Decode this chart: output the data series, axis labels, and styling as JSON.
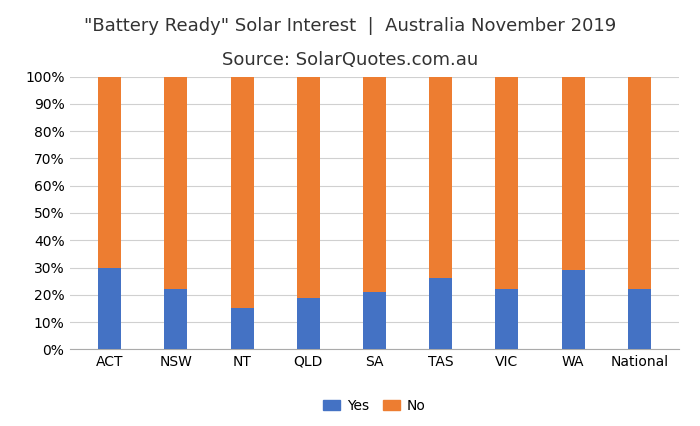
{
  "categories": [
    "ACT",
    "NSW",
    "NT",
    "QLD",
    "SA",
    "TAS",
    "VIC",
    "WA",
    "National"
  ],
  "yes_values": [
    30,
    22,
    15,
    19,
    21,
    26,
    22,
    29,
    22
  ],
  "no_values": [
    70,
    78,
    85,
    81,
    79,
    74,
    78,
    71,
    78
  ],
  "yes_color": "#4472C4",
  "no_color": "#ED7D31",
  "title_line1": "\"Battery Ready\" Solar Interest  |  Australia November 2019",
  "title_line2": "Source: SolarQuotes.com.au",
  "ylim": [
    0,
    100
  ],
  "ytick_labels": [
    "0%",
    "10%",
    "20%",
    "30%",
    "40%",
    "50%",
    "60%",
    "70%",
    "80%",
    "90%",
    "100%"
  ],
  "ytick_values": [
    0,
    10,
    20,
    30,
    40,
    50,
    60,
    70,
    80,
    90,
    100
  ],
  "legend_yes": "Yes",
  "legend_no": "No",
  "background_color": "#FFFFFF",
  "grid_color": "#D0D0D0",
  "title_fontsize": 13,
  "tick_fontsize": 10,
  "bar_width": 0.35
}
